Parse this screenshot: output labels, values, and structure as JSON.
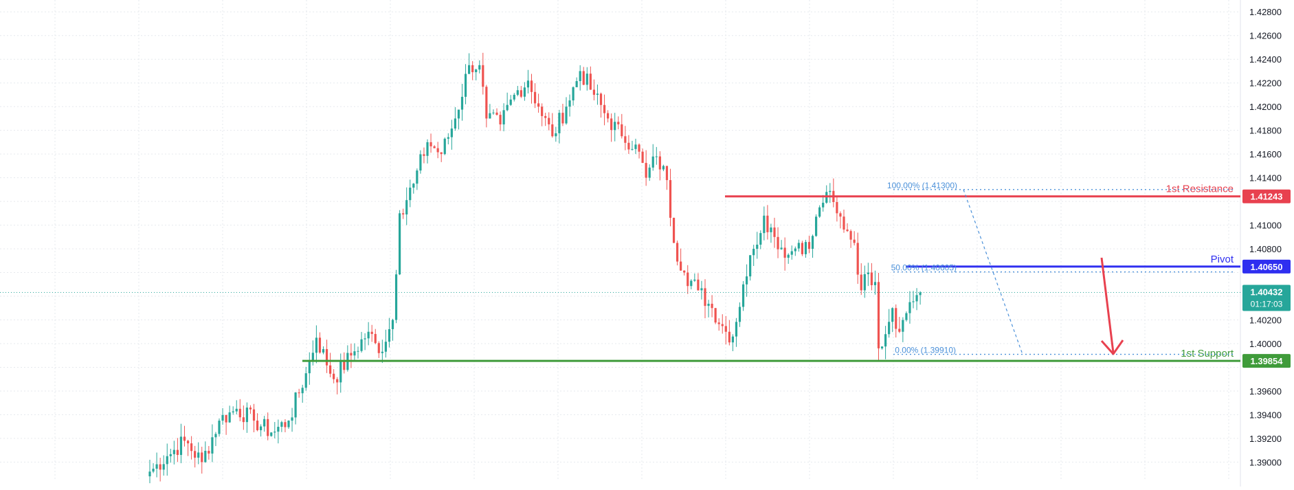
{
  "chart_data": {
    "type": "candlestick",
    "instrument_price": {
      "ylim": [
        1.3884,
        1.429
      ],
      "y_ticks": [
        "1.42800",
        "1.42600",
        "1.42400",
        "1.42200",
        "1.42000",
        "1.41800",
        "1.41600",
        "1.41400",
        "1.41000",
        "1.40800",
        "1.40200",
        "1.40000",
        "1.39600",
        "1.39400",
        "1.39200",
        "1.39000"
      ],
      "grid": true,
      "axis_position": "right"
    },
    "anchors": [
      {
        "i": 0,
        "v": 1.3892
      },
      {
        "i": 5,
        "v": 1.3905
      },
      {
        "i": 10,
        "v": 1.3918
      },
      {
        "i": 15,
        "v": 1.39
      },
      {
        "i": 20,
        "v": 1.3935
      },
      {
        "i": 25,
        "v": 1.3945
      },
      {
        "i": 30,
        "v": 1.3935
      },
      {
        "i": 35,
        "v": 1.3925
      },
      {
        "i": 40,
        "v": 1.3935
      },
      {
        "i": 45,
        "v": 1.3975
      },
      {
        "i": 48,
        "v": 1.4005
      },
      {
        "i": 53,
        "v": 1.397
      },
      {
        "i": 58,
        "v": 1.399
      },
      {
        "i": 63,
        "v": 1.401
      },
      {
        "i": 66,
        "v": 1.3992
      },
      {
        "i": 70,
        "v": 1.402
      },
      {
        "i": 72,
        "v": 1.411
      },
      {
        "i": 76,
        "v": 1.4135
      },
      {
        "i": 80,
        "v": 1.417
      },
      {
        "i": 84,
        "v": 1.416
      },
      {
        "i": 88,
        "v": 1.419
      },
      {
        "i": 92,
        "v": 1.4235
      },
      {
        "i": 95,
        "v": 1.4235
      },
      {
        "i": 97,
        "v": 1.419
      },
      {
        "i": 101,
        "v": 1.4185
      },
      {
        "i": 105,
        "v": 1.421
      },
      {
        "i": 109,
        "v": 1.4222
      },
      {
        "i": 112,
        "v": 1.42
      },
      {
        "i": 116,
        "v": 1.4175
      },
      {
        "i": 120,
        "v": 1.42
      },
      {
        "i": 124,
        "v": 1.423
      },
      {
        "i": 128,
        "v": 1.421
      },
      {
        "i": 132,
        "v": 1.419
      },
      {
        "i": 136,
        "v": 1.4175
      },
      {
        "i": 140,
        "v": 1.4168
      },
      {
        "i": 143,
        "v": 1.414
      },
      {
        "i": 146,
        "v": 1.4158
      },
      {
        "i": 149,
        "v": 1.4138
      },
      {
        "i": 151,
        "v": 1.4085
      },
      {
        "i": 154,
        "v": 1.406
      },
      {
        "i": 158,
        "v": 1.4045
      },
      {
        "i": 162,
        "v": 1.403
      },
      {
        "i": 166,
        "v": 1.401
      },
      {
        "i": 168,
        "v": 1.4006
      },
      {
        "i": 171,
        "v": 1.405
      },
      {
        "i": 174,
        "v": 1.408
      },
      {
        "i": 177,
        "v": 1.4108
      },
      {
        "i": 180,
        "v": 1.409
      },
      {
        "i": 184,
        "v": 1.4075
      },
      {
        "i": 187,
        "v": 1.4085
      },
      {
        "i": 190,
        "v": 1.408
      },
      {
        "i": 193,
        "v": 1.4115
      },
      {
        "i": 195,
        "v": 1.4128
      },
      {
        "i": 198,
        "v": 1.411
      },
      {
        "i": 201,
        "v": 1.4095
      },
      {
        "i": 203,
        "v": 1.4085
      },
      {
        "i": 205,
        "v": 1.4045
      },
      {
        "i": 207,
        "v": 1.406
      },
      {
        "i": 209,
        "v": 1.4052
      },
      {
        "i": 210,
        "v": 1.3996
      },
      {
        "i": 214,
        "v": 1.403
      },
      {
        "i": 216,
        "v": 1.401
      },
      {
        "i": 219,
        "v": 1.4035
      },
      {
        "i": 222,
        "v": 1.4043
      }
    ],
    "current_price": {
      "value": "1.40432",
      "countdown": "01:17:03"
    },
    "levels": [
      {
        "name": "1st Resistance",
        "value": 1.41243,
        "label": "1.41243",
        "color": "#e8414f"
      },
      {
        "name": "Pivot",
        "value": 1.4065,
        "label": "1.40650",
        "color": "#2f2ff0"
      },
      {
        "name": "1st Support",
        "value": 1.39854,
        "label": "1.39854",
        "color": "#3f9b3a"
      }
    ],
    "fibonacci": [
      {
        "label": "100.00% (1.41300)",
        "value": 1.413
      },
      {
        "label": "50.00% (1.40605)",
        "value": 1.40605
      },
      {
        "label": "0.00% (1.39910)",
        "value": 1.3991
      }
    ],
    "colors": {
      "up": "#26a69a",
      "down": "#ef5350",
      "grid": "#e6e9ee",
      "fib": "#4a90d9",
      "arrow": "#e8414f"
    }
  }
}
